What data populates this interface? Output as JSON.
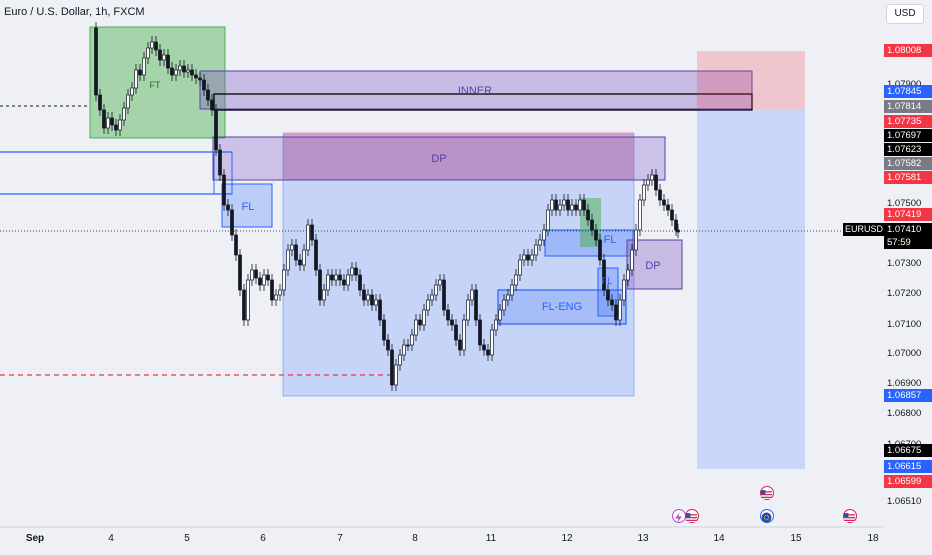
{
  "header": {
    "title": "Euro / U.S. Dollar, 1h, FXCM",
    "currency": "USD"
  },
  "symbol_tag": "EURUSD",
  "countdown": "57:59",
  "price_axis": {
    "ticks": [
      "1.07900",
      "1.07500",
      "1.07300",
      "1.07200",
      "1.07100",
      "1.07000",
      "1.06900",
      "1.06800",
      "1.06700",
      "1.06510"
    ],
    "tags": [
      {
        "text": "1.08008",
        "bg": "#f23645"
      },
      {
        "text": "1.07845",
        "bg": "#2962ff"
      },
      {
        "text": "1.07814",
        "bg": "#787b86"
      },
      {
        "text": "1.07735",
        "bg": "#f23645"
      },
      {
        "text": "1.07697",
        "bg": "#000000"
      },
      {
        "text": "1.07623",
        "bg": "#000000"
      },
      {
        "text": "1.07582",
        "bg": "#787b86"
      },
      {
        "text": "1.07581",
        "bg": "#f23645"
      },
      {
        "text": "1.07419",
        "bg": "#f23645"
      },
      {
        "text": "1.07410",
        "bg": "#000000"
      },
      {
        "text": "1.06857",
        "bg": "#2962ff"
      },
      {
        "text": "1.06675",
        "bg": "#000000"
      },
      {
        "text": "1.06615",
        "bg": "#2962ff"
      },
      {
        "text": "1.06599",
        "bg": "#f23645"
      }
    ]
  },
  "time_axis": [
    "Sep",
    "4",
    "5",
    "6",
    "7",
    "8",
    "11",
    "12",
    "13",
    "14",
    "15",
    "18"
  ],
  "annotations": {
    "inner": "INNER",
    "dp_top": "DP",
    "fl_left": "FL",
    "fl_right": "FL",
    "fl_eng": "FL-ENG",
    "dp_right": "DP",
    "fl_small": "FL",
    "ft": "FT"
  },
  "events": [
    "lightning-icon",
    "us-flag-icon",
    "us-flag-icon",
    "globe-icon",
    "us-flag-icon"
  ],
  "colors": {
    "green_zone": "#4caf50",
    "purple_zone": "#7e57c2",
    "blue_zone": "#2962ff",
    "red_zone": "#f23645"
  }
}
